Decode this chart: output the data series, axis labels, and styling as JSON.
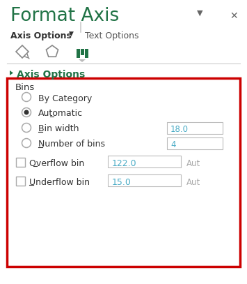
{
  "title": "Format Axis",
  "title_color": "#217346",
  "title_fontsize": 19,
  "bg_color": "#ffffff",
  "tab1": "Axis Options",
  "tab2": "Text Options",
  "tab_color": "#555555",
  "section_label": "Axis Options",
  "section_color": "#217346",
  "bins_label": "Bins",
  "radio_options": [
    "By Category",
    "Automatic",
    "Bin width",
    "Number of bins"
  ],
  "radio_selected": 1,
  "input_vals": [
    "18.0",
    "4"
  ],
  "checkbox_rows": [
    {
      "label": "Overflow bin",
      "value": "122.0",
      "suffix": "Aut"
    },
    {
      "label": "Underflow bin",
      "value": "15.0",
      "suffix": "Aut"
    }
  ],
  "input_value_color": "#4BACC6",
  "input_border_color": "#BBBBBB",
  "box_border_color": "#CC0000",
  "icon_color": "#217346",
  "icon_inactive": "#888888",
  "arrow_color": "#666666",
  "close_color": "#666666",
  "suffix_color": "#AAAAAA",
  "label_color": "#333333",
  "separator_color": "#CCCCCC",
  "radio_border_color": "#AAAAAA",
  "radio_dot_color": "#333333",
  "checkbox_border_color": "#AAAAAA",
  "tab_bold_color": "#333333"
}
